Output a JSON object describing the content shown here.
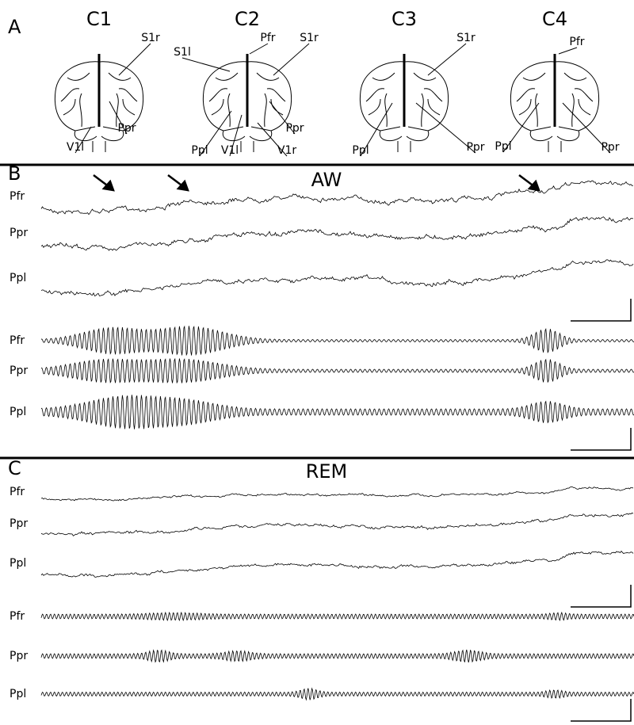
{
  "panel_a": {
    "label": "A",
    "brains": [
      {
        "title": "C1",
        "labels": [
          "S1r",
          "Ppr",
          "V1l"
        ]
      },
      {
        "title": "C2",
        "labels": [
          "Pfr",
          "S1l",
          "S1r",
          "Ppr",
          "Ppl",
          "V1l",
          "V1r"
        ]
      },
      {
        "title": "C3",
        "labels": [
          "S1r",
          "Ppl",
          "Ppr"
        ]
      },
      {
        "title": "C4",
        "labels": [
          "Pfr",
          "Ppl",
          "Ppr"
        ]
      }
    ]
  },
  "panel_b": {
    "label": "B",
    "title": "AW",
    "raw_traces": [
      "Pfr",
      "Ppr",
      "Ppl"
    ],
    "filtered_traces": [
      "Pfr",
      "Ppr",
      "Ppl"
    ]
  },
  "panel_c": {
    "label": "C",
    "title": "REM",
    "raw_traces": [
      "Pfr",
      "Ppr",
      "Ppl"
    ],
    "filtered_traces": [
      "Pfr",
      "Ppr",
      "Ppl"
    ]
  }
}
